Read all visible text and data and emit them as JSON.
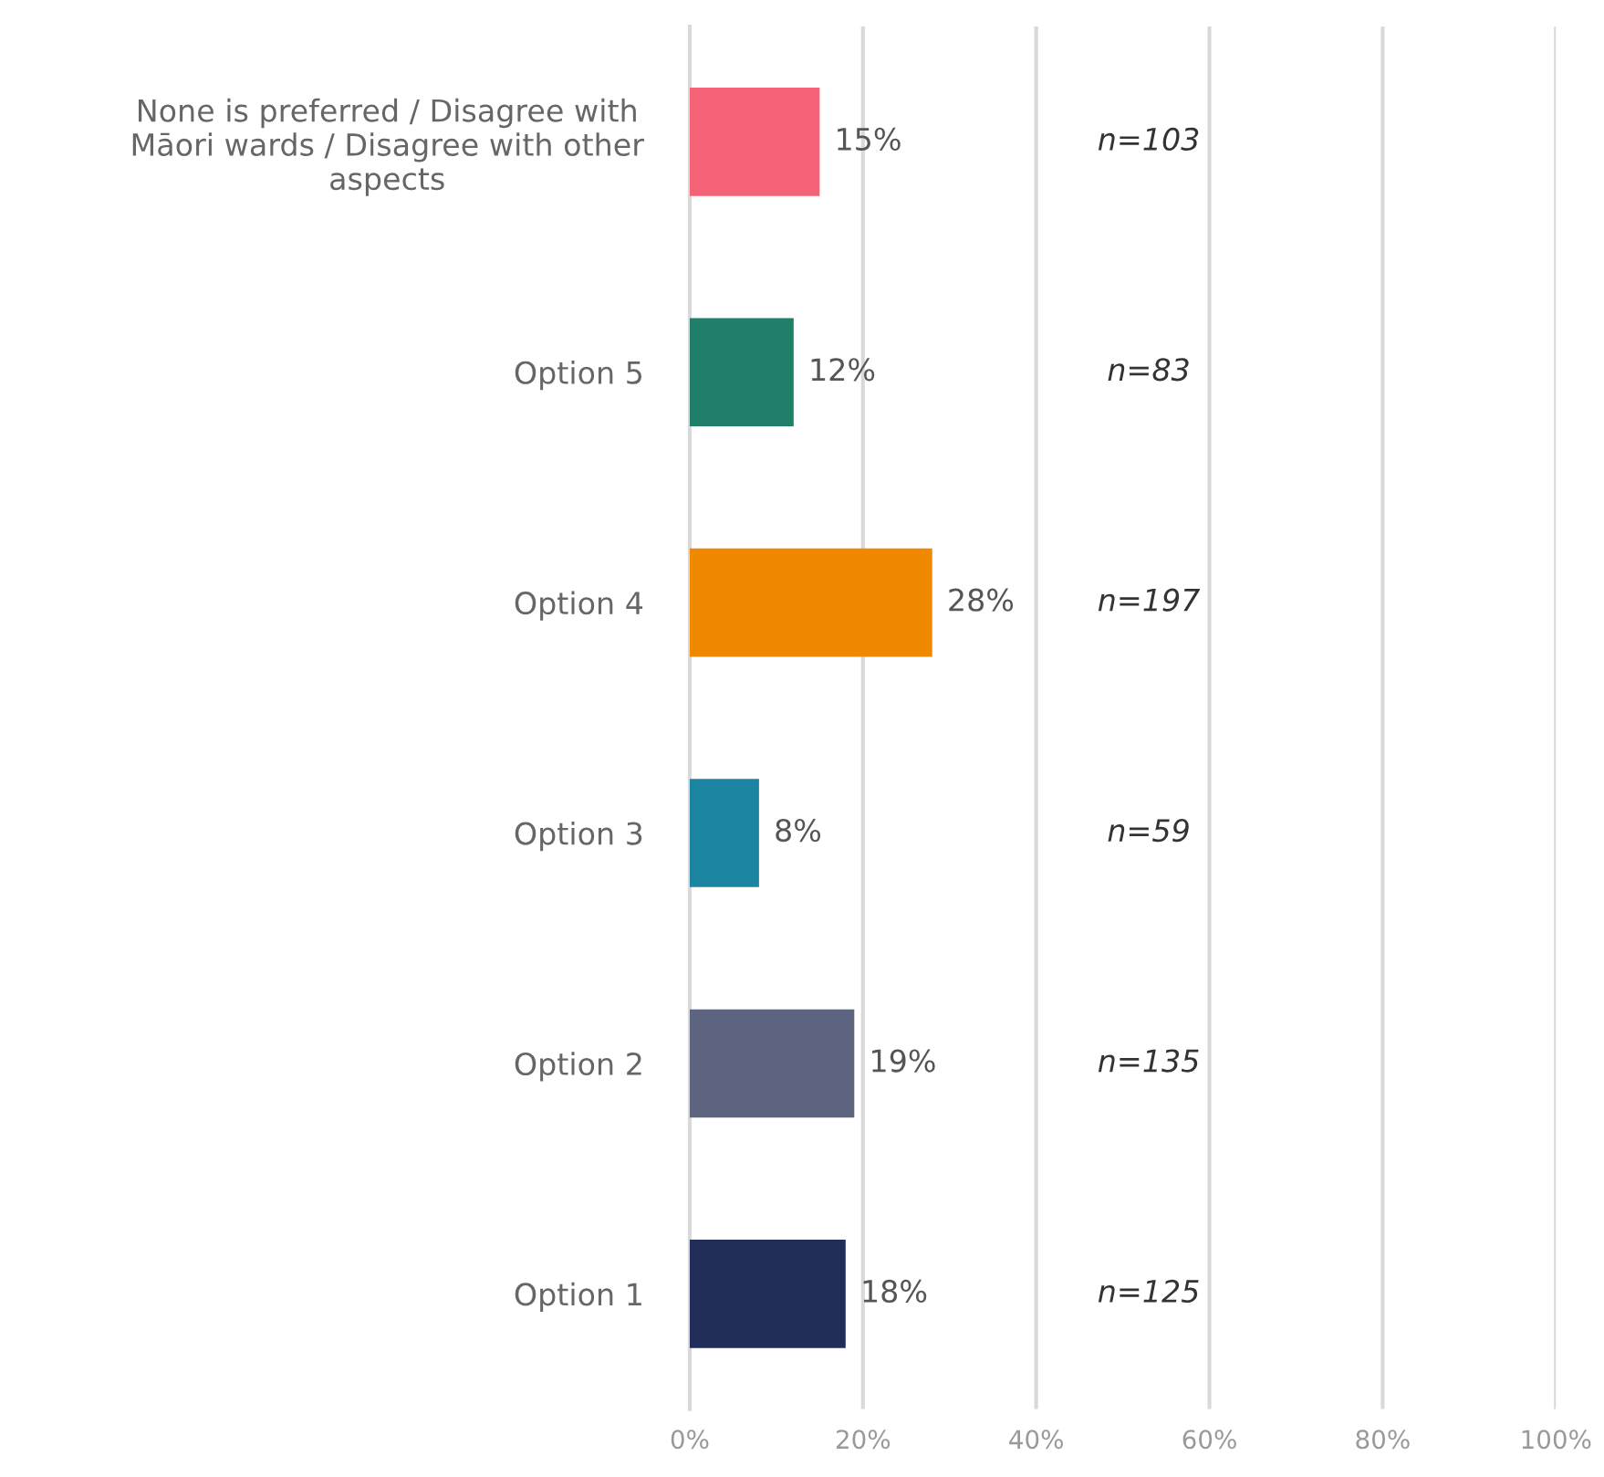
{
  "chart_data": {
    "type": "bar",
    "orientation": "horizontal",
    "categories": [
      "None is preferred / Disagree with Māori wards / Disagree with other aspects",
      "Option 5",
      "Option 4",
      "Option 3",
      "Option 2",
      "Option 1"
    ],
    "values": [
      15,
      12,
      28,
      8,
      19,
      18
    ],
    "colors": [
      "#f46278",
      "#1f7f69",
      "#f08800",
      "#1b84a0",
      "#5c647f",
      "#222e5a"
    ],
    "value_labels": [
      "15%",
      "12%",
      "28%",
      "8%",
      "19%",
      "18%"
    ],
    "xlim": [
      0,
      100
    ],
    "xticks": [
      {
        "value": 0,
        "label": "0%"
      },
      {
        "value": 20,
        "label": "20%"
      },
      {
        "value": 40,
        "label": "40%"
      },
      {
        "value": 60,
        "label": "60%"
      },
      {
        "value": 80,
        "label": "80%"
      },
      {
        "value": 100,
        "label": "100%"
      }
    ],
    "grid": "x",
    "annotations": [
      "n=103",
      "n=83",
      "n=197",
      "n=59",
      "n=135",
      "n=125"
    ]
  }
}
